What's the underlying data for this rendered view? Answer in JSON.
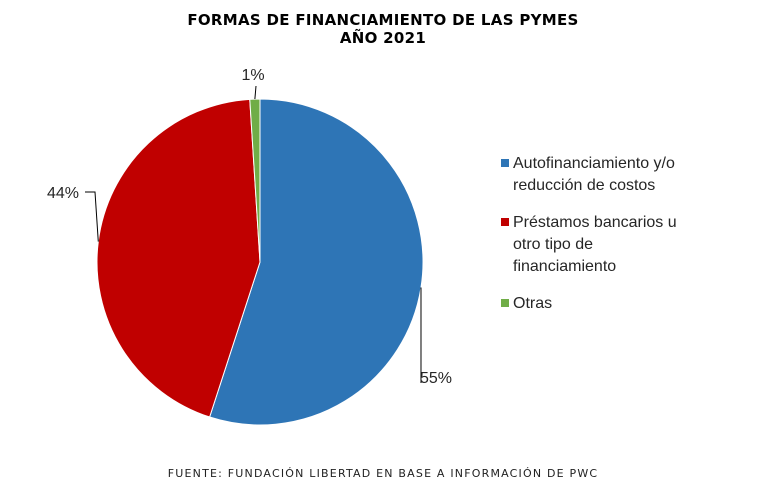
{
  "chart_data": {
    "type": "pie",
    "title": [
      "FORMAS DE FINANCIAMIENTO DE LAS PYMES",
      "AÑO 2021"
    ],
    "slices": [
      {
        "label": "Autofinanciamiento y/o reducción de costos",
        "legend_lines": [
          "Autofinanciamiento y/o",
          "reducción de costos"
        ],
        "value": 55,
        "display": "55%",
        "color": "#2E75B6"
      },
      {
        "label": "Préstamos bancarios u otro tipo de financiamiento",
        "legend_lines": [
          "Préstamos bancarios u",
          "otro tipo de",
          "financiamiento"
        ],
        "value": 44,
        "display": "44%",
        "color": "#C00000"
      },
      {
        "label": "Otras",
        "legend_lines": [
          "Otras"
        ],
        "value": 1,
        "display": "1%",
        "color": "#70AD47"
      }
    ],
    "legend_position": "right"
  },
  "source": "FUENTE: FUNDACIÓN LIBERTAD EN BASE A INFORMACIÓN DE PWC"
}
